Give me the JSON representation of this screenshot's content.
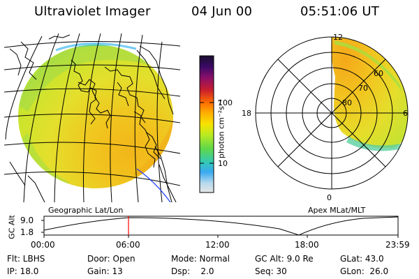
{
  "header": {
    "instrument": "Ultraviolet Imager",
    "date": "04 Jun 00",
    "time": "05:51:06 UT"
  },
  "panels": {
    "geographic_label": "Geographic Lat/Lon",
    "apex_label": "Apex MLat/MLT"
  },
  "colorbar": {
    "unit_label": "photon cm⁻²s⁻¹",
    "ticks": [
      "100",
      "10"
    ],
    "colors": [
      "#1a0f2e",
      "#3a0a66",
      "#8a0f6a",
      "#c81e2d",
      "#ff6a00",
      "#ffb000",
      "#f7e300",
      "#b9ea22",
      "#5fd84a",
      "#33c9b8",
      "#39a9f0",
      "#b5d9ee",
      "#e6e6e6"
    ]
  },
  "polar": {
    "mlt_labels": [
      "12",
      "18",
      "6",
      "0"
    ],
    "mlat_labels": [
      "60",
      "70",
      "80"
    ]
  },
  "altitude_plot": {
    "y_axis_label": "GC Alt",
    "y_ticks": [
      "9.0",
      "1.8"
    ],
    "x_ticks": [
      "00:00",
      "06:00",
      "12:00",
      "18:00",
      "23:59"
    ]
  },
  "meta": {
    "row1": [
      "Flt: LBHS",
      "Door: Open",
      "Mode: Normal",
      "GC Alt: 9.0 Re",
      "GLat:  43.0"
    ],
    "row2": [
      "IP: 18.0",
      "Gain: 13",
      "Dsp:    2.0",
      "Seq: 30",
      "GLon:  26.0"
    ]
  }
}
